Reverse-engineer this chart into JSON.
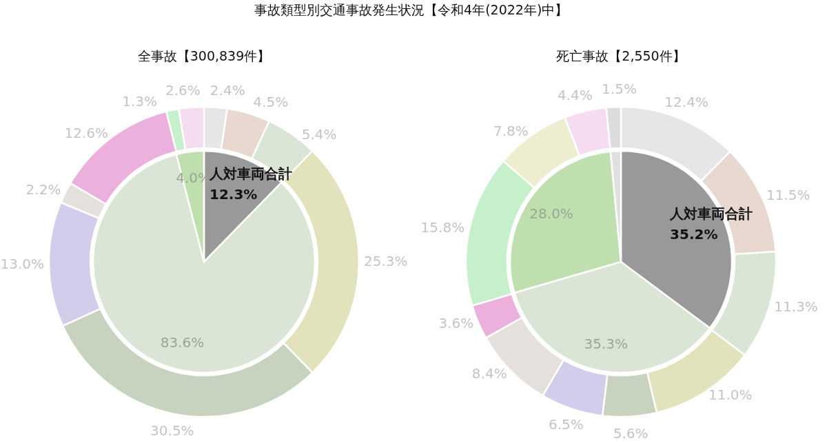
{
  "chart_data": [
    {
      "type": "donut",
      "title": "事故類型別交通事故発生状況【令和4年(2022年)中】",
      "subtitle": "全事故【300,839件】",
      "annotations": [
        "人対車両合計"
      ],
      "series": [
        {
          "type": "pie",
          "values": [
            12.3,
            83.6,
            4.0
          ],
          "colors": [
            "#999999",
            "#dbe5d5",
            "#c0dfae"
          ],
          "value_labels": [
            "12.3%",
            "83.6%",
            "4.0%"
          ]
        },
        {
          "type": "donut",
          "values": [
            2.4,
            4.5,
            5.4,
            25.3,
            30.5,
            13.0,
            2.2,
            12.6,
            1.3,
            2.6
          ],
          "colors": [
            "#e6e6e6",
            "#e8d8d0",
            "#dbe5d5",
            "#e2e2bd",
            "#c7d2bf",
            "#d2cdea",
            "#e6e0dd",
            "#ebb0dc",
            "#c5f0cb",
            "#f5dcf0"
          ],
          "value_labels": [
            "2.4%",
            "4.5%",
            "5.4%",
            "25.3%",
            "30.5%",
            "13.0%",
            "2.2%",
            "12.6%",
            "1.3%",
            "2.6%"
          ]
        }
      ]
    },
    {
      "type": "donut",
      "subtitle": "死亡事故【2,550件】",
      "annotations": [
        "人対車両合計"
      ],
      "series": [
        {
          "type": "pie",
          "values": [
            35.2,
            35.3,
            28.0,
            1.5
          ],
          "colors": [
            "#999999",
            "#dbe5d5",
            "#c0dfae",
            "#e0e0e0"
          ],
          "value_labels": [
            "35.2%",
            "35.3%",
            "28.0%",
            null
          ]
        },
        {
          "type": "donut",
          "values": [
            12.4,
            11.5,
            11.3,
            11.0,
            5.6,
            6.5,
            8.4,
            3.6,
            15.8,
            7.8,
            4.4,
            1.5
          ],
          "colors": [
            "#e6e6e6",
            "#e8d8d0",
            "#dbe5d5",
            "#e2e2bd",
            "#c7d2bf",
            "#d2cdea",
            "#e6e0dd",
            "#ebb0dc",
            "#c5f0cb",
            "#efedd0",
            "#f5dcf0",
            "#dcdcdc"
          ],
          "value_labels": [
            "12.4%",
            "11.5%",
            "11.3%",
            "11.0%",
            "5.6%",
            "6.5%",
            "8.4%",
            "3.6%",
            "15.8%",
            "7.8%",
            "4.4%",
            "1.5%"
          ]
        }
      ]
    }
  ]
}
